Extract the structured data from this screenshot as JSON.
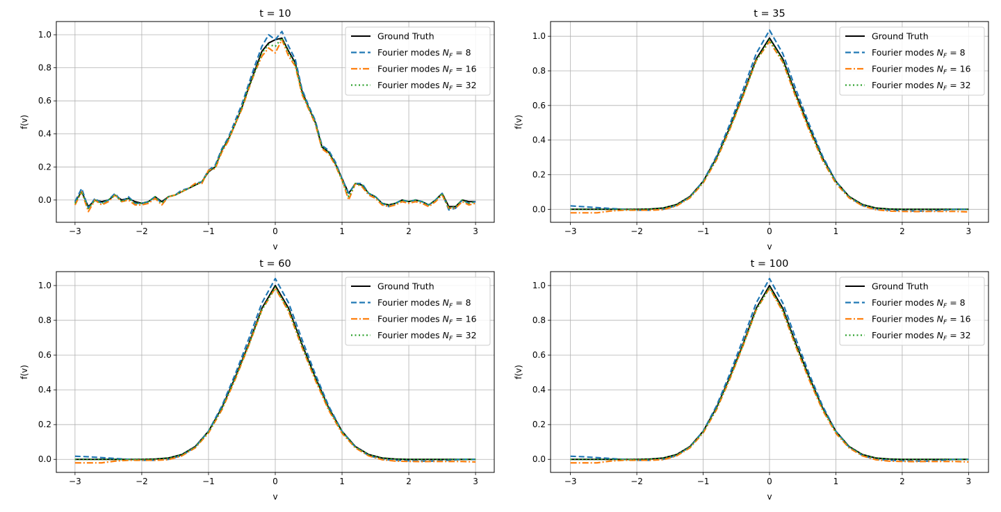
{
  "figure": {
    "legend_labels": [
      "Ground Truth",
      "Fourier modes",
      "Fourier modes",
      "Fourier modes"
    ],
    "legend_modes": [
      "8",
      "16",
      "32"
    ],
    "colors": {
      "ground_truth": "#000000",
      "nf8": "#1f77b4",
      "nf16": "#ff7f0e",
      "nf32": "#2ca02c",
      "grid": "#b0b0b0"
    }
  },
  "chart_data": [
    {
      "type": "line",
      "title": "t = 10",
      "xlabel": "v",
      "ylabel": "f(v)",
      "xlim": [
        -3.28,
        3.28
      ],
      "ylim": [
        -0.135,
        1.08
      ],
      "xticks": [
        -3,
        -2,
        -1,
        0,
        1,
        2,
        3
      ],
      "xtick_labels": [
        "−3",
        "−2",
        "−1",
        "0",
        "1",
        "2",
        "3"
      ],
      "yticks": [
        0.0,
        0.2,
        0.4,
        0.6,
        0.8,
        1.0
      ],
      "ytick_labels": [
        "0.0",
        "0.2",
        "0.4",
        "0.6",
        "0.8",
        "1.0"
      ],
      "legend_position": "top-right",
      "x": [
        -3.0,
        -2.9,
        -2.8,
        -2.7,
        -2.6,
        -2.5,
        -2.4,
        -2.3,
        -2.2,
        -2.1,
        -2.0,
        -1.9,
        -1.8,
        -1.7,
        -1.6,
        -1.5,
        -1.4,
        -1.3,
        -1.2,
        -1.1,
        -1.0,
        -0.9,
        -0.8,
        -0.7,
        -0.6,
        -0.5,
        -0.4,
        -0.3,
        -0.2,
        -0.1,
        0.0,
        0.1,
        0.2,
        0.3,
        0.4,
        0.5,
        0.6,
        0.7,
        0.8,
        0.9,
        1.0,
        1.1,
        1.2,
        1.3,
        1.4,
        1.5,
        1.6,
        1.7,
        1.8,
        1.9,
        2.0,
        2.1,
        2.2,
        2.3,
        2.4,
        2.5,
        2.6,
        2.7,
        2.8,
        2.9,
        3.0
      ],
      "series": [
        {
          "name": "Ground Truth",
          "style": "solid",
          "values": [
            -0.01,
            0.05,
            -0.04,
            0.0,
            -0.01,
            0.0,
            0.03,
            0.0,
            0.01,
            -0.01,
            -0.02,
            -0.01,
            0.02,
            -0.01,
            0.02,
            0.03,
            0.05,
            0.07,
            0.09,
            0.11,
            0.17,
            0.2,
            0.3,
            0.37,
            0.46,
            0.56,
            0.68,
            0.79,
            0.9,
            0.95,
            0.97,
            0.98,
            0.9,
            0.83,
            0.66,
            0.56,
            0.47,
            0.32,
            0.29,
            0.22,
            0.13,
            0.04,
            0.1,
            0.09,
            0.04,
            0.02,
            -0.02,
            -0.03,
            -0.02,
            0.0,
            -0.01,
            0.0,
            -0.01,
            -0.03,
            0.0,
            0.04,
            -0.04,
            -0.04,
            0.0,
            -0.01,
            -0.01
          ]
        },
        {
          "name": "Fourier modes N_F = 8",
          "style": "dashed",
          "values": [
            -0.01,
            0.07,
            -0.05,
            0.01,
            -0.02,
            0.0,
            0.04,
            -0.01,
            0.02,
            -0.02,
            -0.02,
            -0.01,
            0.02,
            -0.02,
            0.02,
            0.03,
            0.06,
            0.07,
            0.1,
            0.11,
            0.18,
            0.21,
            0.31,
            0.38,
            0.48,
            0.58,
            0.7,
            0.82,
            0.93,
            1.0,
            0.97,
            1.02,
            0.93,
            0.85,
            0.67,
            0.57,
            0.48,
            0.33,
            0.3,
            0.23,
            0.13,
            0.04,
            0.1,
            0.1,
            0.04,
            0.02,
            -0.02,
            -0.04,
            -0.02,
            0.0,
            -0.01,
            0.0,
            -0.01,
            -0.03,
            0.0,
            0.04,
            -0.06,
            -0.05,
            0.0,
            -0.02,
            -0.01
          ]
        },
        {
          "name": "Fourier modes N_F = 16",
          "style": "dashdot",
          "values": [
            -0.03,
            0.05,
            -0.07,
            0.0,
            -0.03,
            -0.01,
            0.03,
            -0.01,
            0.0,
            -0.03,
            -0.03,
            -0.02,
            0.01,
            -0.03,
            0.02,
            0.03,
            0.05,
            0.07,
            0.1,
            0.1,
            0.18,
            0.19,
            0.29,
            0.36,
            0.46,
            0.55,
            0.67,
            0.78,
            0.87,
            0.92,
            0.89,
            0.97,
            0.87,
            0.81,
            0.64,
            0.55,
            0.46,
            0.31,
            0.28,
            0.21,
            0.12,
            0.0,
            0.1,
            0.08,
            0.03,
            0.01,
            -0.03,
            -0.04,
            -0.03,
            -0.01,
            -0.02,
            -0.01,
            -0.02,
            -0.04,
            -0.01,
            0.03,
            -0.05,
            -0.05,
            -0.01,
            -0.03,
            -0.02
          ]
        },
        {
          "name": "Fourier modes N_F = 32",
          "style": "dotted",
          "values": [
            -0.02,
            0.05,
            -0.05,
            0.0,
            -0.02,
            0.0,
            0.03,
            -0.01,
            0.01,
            -0.02,
            -0.02,
            -0.01,
            0.02,
            -0.02,
            0.02,
            0.03,
            0.05,
            0.07,
            0.09,
            0.11,
            0.17,
            0.2,
            0.3,
            0.37,
            0.46,
            0.56,
            0.68,
            0.78,
            0.89,
            0.94,
            0.93,
            0.98,
            0.89,
            0.82,
            0.65,
            0.56,
            0.47,
            0.32,
            0.29,
            0.22,
            0.12,
            0.02,
            0.1,
            0.09,
            0.04,
            0.02,
            -0.02,
            -0.03,
            -0.02,
            0.0,
            -0.01,
            0.0,
            -0.01,
            -0.03,
            0.0,
            0.04,
            -0.05,
            -0.04,
            0.0,
            -0.02,
            -0.01
          ]
        }
      ]
    },
    {
      "type": "line",
      "title": "t = 35",
      "xlabel": "v",
      "ylabel": "f(v)",
      "xlim": [
        -3.3,
        3.3
      ],
      "ylim": [
        -0.075,
        1.085
      ],
      "xticks": [
        -3,
        -2,
        -1,
        0,
        1,
        2,
        3
      ],
      "xtick_labels": [
        "−3",
        "−2",
        "−1",
        "0",
        "1",
        "2",
        "3"
      ],
      "yticks": [
        0.0,
        0.2,
        0.4,
        0.6,
        0.8,
        1.0
      ],
      "ytick_labels": [
        "0.0",
        "0.2",
        "0.4",
        "0.6",
        "0.8",
        "1.0"
      ],
      "legend_position": "top-right",
      "x": [
        -3.0,
        -2.8,
        -2.6,
        -2.4,
        -2.2,
        -2.0,
        -1.8,
        -1.6,
        -1.4,
        -1.2,
        -1.0,
        -0.8,
        -0.6,
        -0.4,
        -0.2,
        0.0,
        0.2,
        0.4,
        0.6,
        0.8,
        1.0,
        1.2,
        1.4,
        1.6,
        1.8,
        2.0,
        2.2,
        2.4,
        2.6,
        2.8,
        3.0
      ],
      "series": [
        {
          "name": "Ground Truth",
          "style": "solid",
          "values": [
            0.0,
            0.0,
            0.0,
            0.0,
            0.0,
            0.0,
            0.002,
            0.008,
            0.028,
            0.074,
            0.162,
            0.297,
            0.472,
            0.662,
            0.869,
            0.99,
            0.869,
            0.662,
            0.472,
            0.297,
            0.162,
            0.074,
            0.028,
            0.008,
            0.002,
            0.0,
            0.0,
            0.0,
            0.0,
            0.0,
            0.0
          ]
        },
        {
          "name": "Fourier modes N_F = 8",
          "style": "dashed",
          "values": [
            0.02,
            0.015,
            0.01,
            0.005,
            0.0,
            -0.005,
            -0.005,
            0.0,
            0.022,
            0.07,
            0.162,
            0.307,
            0.49,
            0.69,
            0.9,
            1.035,
            0.9,
            0.69,
            0.49,
            0.307,
            0.162,
            0.07,
            0.022,
            0.0,
            -0.005,
            -0.008,
            -0.01,
            -0.01,
            -0.005,
            0.0,
            0.0
          ]
        },
        {
          "name": "Fourier modes N_F = 16",
          "style": "dashdot",
          "values": [
            -0.02,
            -0.02,
            -0.02,
            -0.01,
            -0.005,
            -0.005,
            -0.005,
            -0.002,
            0.02,
            0.066,
            0.152,
            0.285,
            0.46,
            0.652,
            0.86,
            0.97,
            0.85,
            0.645,
            0.455,
            0.283,
            0.15,
            0.066,
            0.02,
            -0.002,
            -0.01,
            -0.012,
            -0.013,
            -0.012,
            -0.012,
            -0.012,
            -0.015
          ]
        },
        {
          "name": "Fourier modes N_F = 32",
          "style": "dotted",
          "values": [
            0.0,
            0.0,
            0.0,
            0.0,
            0.0,
            0.0,
            0.002,
            0.008,
            0.027,
            0.072,
            0.158,
            0.292,
            0.467,
            0.656,
            0.86,
            0.98,
            0.86,
            0.656,
            0.467,
            0.292,
            0.158,
            0.072,
            0.027,
            0.008,
            0.002,
            0.0,
            0.0,
            0.0,
            0.0,
            0.0,
            0.0
          ]
        }
      ]
    },
    {
      "type": "line",
      "title": "t = 60",
      "xlabel": "v",
      "ylabel": "f(v)",
      "xlim": [
        -3.28,
        3.28
      ],
      "ylim": [
        -0.075,
        1.08
      ],
      "xticks": [
        -3,
        -2,
        -1,
        0,
        1,
        2,
        3
      ],
      "xtick_labels": [
        "−3",
        "−2",
        "−1",
        "0",
        "1",
        "2",
        "3"
      ],
      "yticks": [
        0.0,
        0.2,
        0.4,
        0.6,
        0.8,
        1.0
      ],
      "ytick_labels": [
        "0.0",
        "0.2",
        "0.4",
        "0.6",
        "0.8",
        "1.0"
      ],
      "legend_position": "top-right",
      "x": [
        -3.0,
        -2.8,
        -2.6,
        -2.4,
        -2.2,
        -2.0,
        -1.8,
        -1.6,
        -1.4,
        -1.2,
        -1.0,
        -0.8,
        -0.6,
        -0.4,
        -0.2,
        0.0,
        0.2,
        0.4,
        0.6,
        0.8,
        1.0,
        1.2,
        1.4,
        1.6,
        1.8,
        2.0,
        2.2,
        2.4,
        2.6,
        2.8,
        3.0
      ],
      "series": [
        {
          "name": "Ground Truth",
          "style": "solid",
          "values": [
            0.0,
            0.0,
            0.0,
            0.0,
            0.0,
            0.0,
            0.002,
            0.008,
            0.028,
            0.074,
            0.162,
            0.297,
            0.472,
            0.662,
            0.869,
            1.0,
            0.869,
            0.662,
            0.472,
            0.297,
            0.162,
            0.074,
            0.028,
            0.008,
            0.002,
            0.0,
            0.0,
            0.0,
            0.0,
            0.0,
            0.0
          ]
        },
        {
          "name": "Fourier modes N_F = 8",
          "style": "dashed",
          "values": [
            0.018,
            0.015,
            0.01,
            0.005,
            0.0,
            -0.005,
            -0.005,
            0.0,
            0.022,
            0.07,
            0.162,
            0.307,
            0.49,
            0.69,
            0.9,
            1.04,
            0.9,
            0.69,
            0.49,
            0.307,
            0.162,
            0.07,
            0.022,
            0.0,
            -0.005,
            -0.008,
            -0.01,
            -0.01,
            -0.005,
            0.0,
            0.0
          ]
        },
        {
          "name": "Fourier modes N_F = 16",
          "style": "dashdot",
          "values": [
            -0.02,
            -0.02,
            -0.02,
            -0.01,
            -0.005,
            -0.005,
            -0.005,
            -0.002,
            0.02,
            0.066,
            0.152,
            0.285,
            0.46,
            0.652,
            0.86,
            0.985,
            0.85,
            0.645,
            0.455,
            0.283,
            0.15,
            0.066,
            0.02,
            -0.002,
            -0.01,
            -0.012,
            -0.013,
            -0.012,
            -0.012,
            -0.012,
            -0.015
          ]
        },
        {
          "name": "Fourier modes N_F = 32",
          "style": "dotted",
          "values": [
            0.0,
            0.0,
            0.0,
            0.0,
            0.0,
            0.0,
            0.002,
            0.008,
            0.027,
            0.072,
            0.158,
            0.292,
            0.467,
            0.656,
            0.86,
            0.99,
            0.86,
            0.656,
            0.467,
            0.292,
            0.158,
            0.072,
            0.027,
            0.008,
            0.002,
            0.0,
            0.0,
            0.0,
            0.0,
            0.0,
            0.0
          ]
        }
      ]
    },
    {
      "type": "line",
      "title": "t = 100",
      "xlabel": "v",
      "ylabel": "f(v)",
      "xlim": [
        -3.3,
        3.3
      ],
      "ylim": [
        -0.075,
        1.08
      ],
      "xticks": [
        -3,
        -2,
        -1,
        0,
        1,
        2,
        3
      ],
      "xtick_labels": [
        "−3",
        "−2",
        "−1",
        "0",
        "1",
        "2",
        "3"
      ],
      "yticks": [
        0.0,
        0.2,
        0.4,
        0.6,
        0.8,
        1.0
      ],
      "ytick_labels": [
        "0.0",
        "0.2",
        "0.4",
        "0.6",
        "0.8",
        "1.0"
      ],
      "legend_position": "top-right",
      "x": [
        -3.0,
        -2.8,
        -2.6,
        -2.4,
        -2.2,
        -2.0,
        -1.8,
        -1.6,
        -1.4,
        -1.2,
        -1.0,
        -0.8,
        -0.6,
        -0.4,
        -0.2,
        0.0,
        0.2,
        0.4,
        0.6,
        0.8,
        1.0,
        1.2,
        1.4,
        1.6,
        1.8,
        2.0,
        2.2,
        2.4,
        2.6,
        2.8,
        3.0
      ],
      "series": [
        {
          "name": "Ground Truth",
          "style": "solid",
          "values": [
            0.0,
            0.0,
            0.0,
            0.0,
            0.0,
            0.0,
            0.002,
            0.008,
            0.028,
            0.074,
            0.162,
            0.297,
            0.472,
            0.662,
            0.869,
            1.0,
            0.869,
            0.662,
            0.472,
            0.297,
            0.162,
            0.074,
            0.028,
            0.008,
            0.002,
            0.0,
            0.0,
            0.0,
            0.0,
            0.0,
            0.0
          ]
        },
        {
          "name": "Fourier modes N_F = 8",
          "style": "dashed",
          "values": [
            0.018,
            0.015,
            0.01,
            0.005,
            0.0,
            -0.005,
            -0.005,
            0.0,
            0.022,
            0.07,
            0.162,
            0.307,
            0.49,
            0.69,
            0.9,
            1.04,
            0.9,
            0.69,
            0.49,
            0.307,
            0.162,
            0.07,
            0.022,
            0.0,
            -0.005,
            -0.008,
            -0.01,
            -0.01,
            -0.005,
            0.0,
            0.0
          ]
        },
        {
          "name": "Fourier modes N_F = 16",
          "style": "dashdot",
          "values": [
            -0.02,
            -0.02,
            -0.02,
            -0.01,
            -0.005,
            -0.005,
            -0.005,
            -0.002,
            0.02,
            0.066,
            0.152,
            0.285,
            0.46,
            0.652,
            0.86,
            0.985,
            0.85,
            0.645,
            0.455,
            0.283,
            0.15,
            0.066,
            0.02,
            -0.002,
            -0.01,
            -0.012,
            -0.013,
            -0.012,
            -0.012,
            -0.012,
            -0.015
          ]
        },
        {
          "name": "Fourier modes N_F = 32",
          "style": "dotted",
          "values": [
            0.0,
            0.0,
            0.0,
            0.0,
            0.0,
            0.0,
            0.002,
            0.008,
            0.027,
            0.072,
            0.158,
            0.292,
            0.467,
            0.656,
            0.86,
            0.99,
            0.86,
            0.656,
            0.467,
            0.292,
            0.158,
            0.072,
            0.027,
            0.008,
            0.002,
            0.0,
            0.0,
            0.0,
            0.0,
            0.0,
            0.0
          ]
        }
      ]
    }
  ]
}
